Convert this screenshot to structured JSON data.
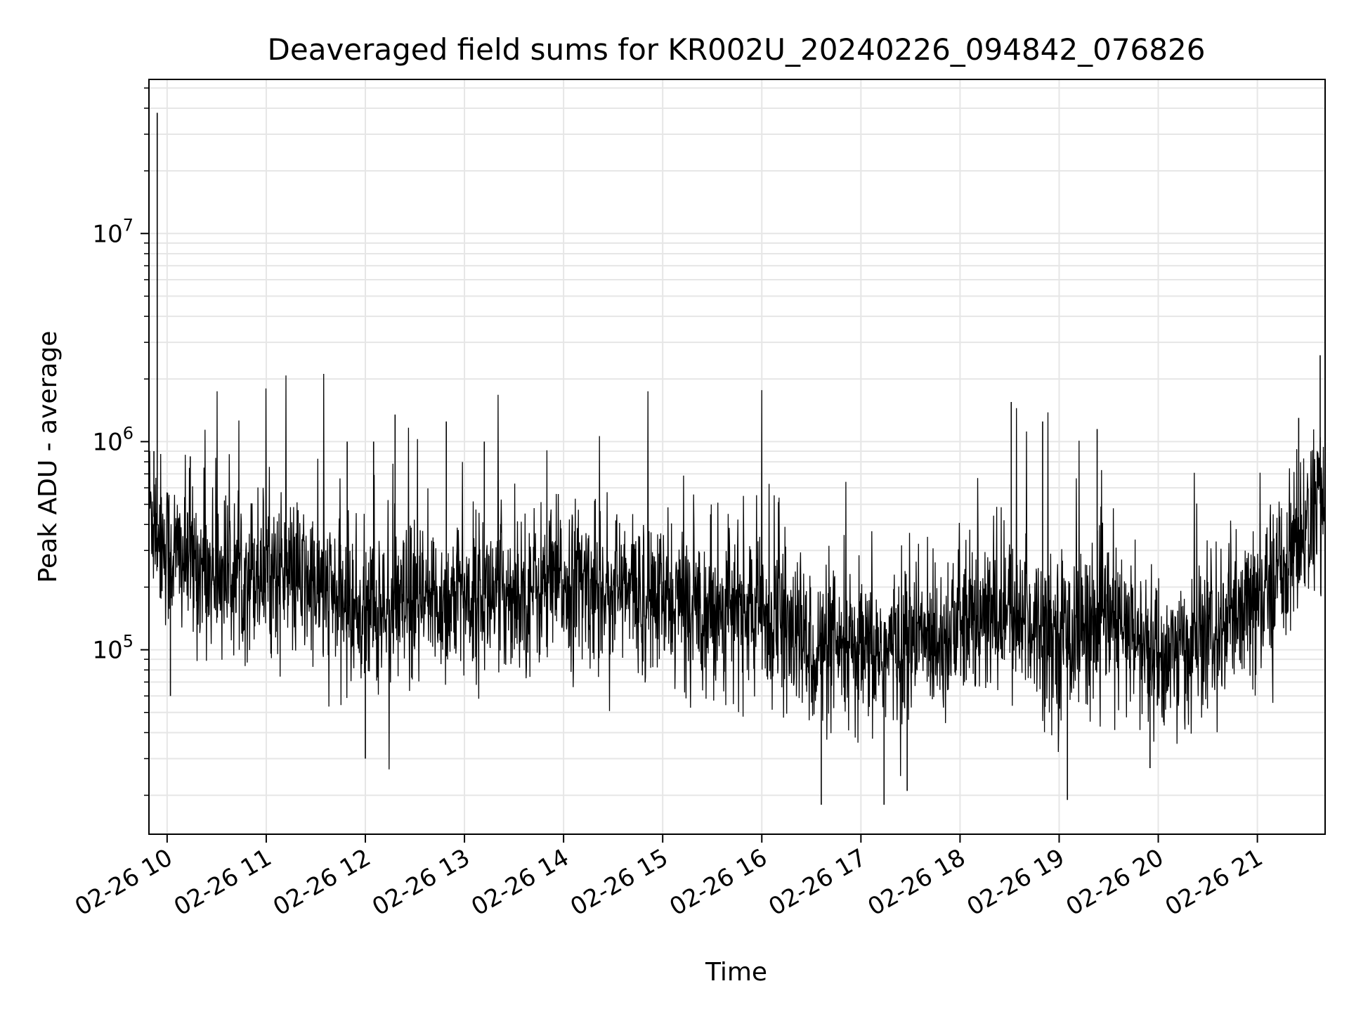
{
  "chart_data": {
    "type": "line",
    "title": "Deaveraged field sums for KR002U_20240226_094842_076826",
    "xlabel": "Time",
    "ylabel": "Peak ADU - average",
    "yscale": "log",
    "ylim": [
      13000,
      55000000
    ],
    "xlim": [
      "2024-02-26 09:49",
      "2024-02-26 21:41"
    ],
    "grid": true,
    "line_color": "#000000",
    "grid_color": "#e6e6e6",
    "x_tick_labels": [
      "02-26 10",
      "02-26 11",
      "02-26 12",
      "02-26 13",
      "02-26 14",
      "02-26 15",
      "02-26 16",
      "02-26 17",
      "02-26 18",
      "02-26 19",
      "02-26 20",
      "02-26 21"
    ],
    "x_tick_times": [
      "2024-02-26 10:00",
      "2024-02-26 11:00",
      "2024-02-26 12:00",
      "2024-02-26 13:00",
      "2024-02-26 14:00",
      "2024-02-26 15:00",
      "2024-02-26 16:00",
      "2024-02-26 17:00",
      "2024-02-26 18:00",
      "2024-02-26 19:00",
      "2024-02-26 20:00",
      "2024-02-26 21:00"
    ],
    "y_tick_labels": [
      {
        "base": "10",
        "exp": "5",
        "value": 100000
      },
      {
        "base": "10",
        "exp": "6",
        "value": 1000000
      },
      {
        "base": "10",
        "exp": "7",
        "value": 10000000
      }
    ],
    "series": [
      {
        "baseline": {
          "x": [
            "2024-02-26 09:49",
            "2024-02-26 10:00",
            "2024-02-26 10:30",
            "2024-02-26 11:00",
            "2024-02-26 11:30",
            "2024-02-26 12:00",
            "2024-02-26 12:30",
            "2024-02-26 13:00",
            "2024-02-26 13:30",
            "2024-02-26 14:00",
            "2024-02-26 14:30",
            "2024-02-26 15:00",
            "2024-02-26 15:30",
            "2024-02-26 16:00",
            "2024-02-26 16:30",
            "2024-02-26 17:00",
            "2024-02-26 17:30",
            "2024-02-26 18:00",
            "2024-02-26 18:30",
            "2024-02-26 19:00",
            "2024-02-26 19:30",
            "2024-02-26 20:00",
            "2024-02-26 20:30",
            "2024-02-26 21:00",
            "2024-02-26 21:30",
            "2024-02-26 21:41"
          ],
          "y": [
            500000,
            300000,
            230000,
            250000,
            200000,
            150000,
            160000,
            180000,
            190000,
            210000,
            200000,
            170000,
            160000,
            150000,
            100000,
            90000,
            110000,
            130000,
            150000,
            120000,
            140000,
            90000,
            110000,
            160000,
            400000,
            550000
          ]
        },
        "spikes": {
          "x": [
            "2024-02-26 09:54",
            "2024-02-26 09:52",
            "2024-02-26 10:14",
            "2024-02-26 11:49",
            "2024-02-26 12:05",
            "2024-02-26 12:18",
            "2024-02-26 12:49",
            "2024-02-26 13:12",
            "2024-02-26 18:31",
            "2024-02-26 18:50",
            "2024-02-26 19:23",
            "2024-02-26 21:38",
            "2024-02-26 21:25",
            "2024-02-26 16:36",
            "2024-02-26 17:14",
            "2024-02-26 19:55",
            "2024-02-26 12:00",
            "2024-02-26 19:05",
            "2024-02-26 10:02",
            "2024-02-26 17:28"
          ],
          "y": [
            38000000,
            900000,
            850000,
            1000000,
            1000000,
            1350000,
            1250000,
            1000000,
            1550000,
            1250000,
            1150000,
            2600000,
            1300000,
            18000,
            18000,
            27000,
            30000,
            19000,
            60000,
            21000
          ]
        }
      }
    ]
  }
}
